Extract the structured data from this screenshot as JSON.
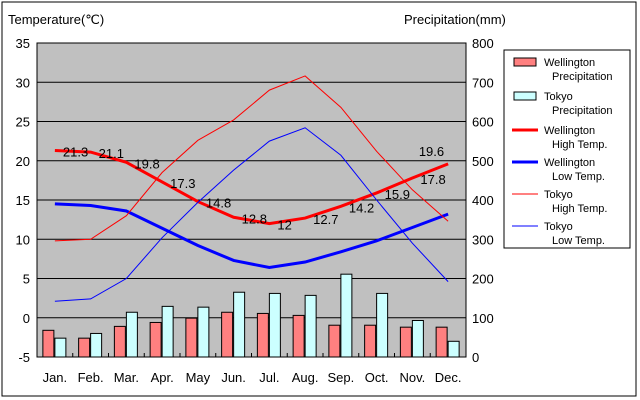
{
  "chart_data": {
    "type": "bar+line",
    "ylabel_left": "Temperature(℃)",
    "ylabel_right": "Precipitation(mm)",
    "ylim_left": [
      -5,
      35
    ],
    "ylim_right": [
      0,
      800
    ],
    "yticks_left": [
      "35",
      "30",
      "25",
      "20",
      "15",
      "10",
      "5",
      "0",
      "-5"
    ],
    "yticks_right": [
      "800",
      "700",
      "600",
      "500",
      "400",
      "300",
      "200",
      "100",
      "0"
    ],
    "categories": [
      "Jan.",
      "Feb.",
      "Mar.",
      "Apr.",
      "May",
      "Jun.",
      "Jul.",
      "Aug.",
      "Sep.",
      "Oct.",
      "Nov.",
      "Dec."
    ],
    "grid": true,
    "legend_position": "right",
    "bars": [
      {
        "name": "Wellington Precipitation",
        "lines": [
          "Wellington",
          "Precipitation"
        ],
        "color": "#ff8080",
        "values": [
          68,
          48,
          78,
          88,
          99,
          114,
          111,
          106,
          81,
          81,
          76,
          76
        ]
      },
      {
        "name": "Tokyo Precipitation",
        "lines": [
          "Tokyo",
          "Precipitation"
        ],
        "color": "#ccffff",
        "values": [
          48,
          60,
          114,
          129,
          127,
          165,
          162,
          157,
          211,
          162,
          93,
          40
        ]
      }
    ],
    "series": [
      {
        "name": "Wellington High Temp.",
        "lines": [
          "Wellington",
          "High Temp."
        ],
        "color": "#ff0000",
        "width": 3,
        "values": [
          21.3,
          21.1,
          19.8,
          17.3,
          14.8,
          12.8,
          12,
          12.7,
          14.2,
          15.9,
          17.8,
          19.6
        ],
        "labels": [
          "21.3",
          "21.1",
          "19.8",
          "17.3",
          "14.8",
          "12.8",
          "12",
          "12.7",
          "14.2",
          "15.9",
          "17.8",
          "19.6"
        ]
      },
      {
        "name": "Wellington Low Temp.",
        "lines": [
          "Wellington",
          "Low Temp."
        ],
        "color": "#0000ff",
        "width": 3,
        "values": [
          14.5,
          14.3,
          13.6,
          11.4,
          9.2,
          7.3,
          6.4,
          7.1,
          8.4,
          9.8,
          11.5,
          13.2
        ]
      },
      {
        "name": "Tokyo High Temp.",
        "lines": [
          "Tokyo",
          "High Temp."
        ],
        "color": "#ff0000",
        "width": 1,
        "values": [
          9.8,
          10.0,
          13.0,
          18.5,
          22.6,
          25.2,
          29.0,
          30.8,
          26.8,
          21.2,
          16.3,
          12.3
        ]
      },
      {
        "name": "Tokyo Low Temp.",
        "lines": [
          "Tokyo",
          "Low Temp."
        ],
        "color": "#0000ff",
        "width": 1,
        "values": [
          2.1,
          2.4,
          5.0,
          10.2,
          14.7,
          18.8,
          22.5,
          24.2,
          20.7,
          15.0,
          9.5,
          4.6
        ]
      }
    ]
  }
}
